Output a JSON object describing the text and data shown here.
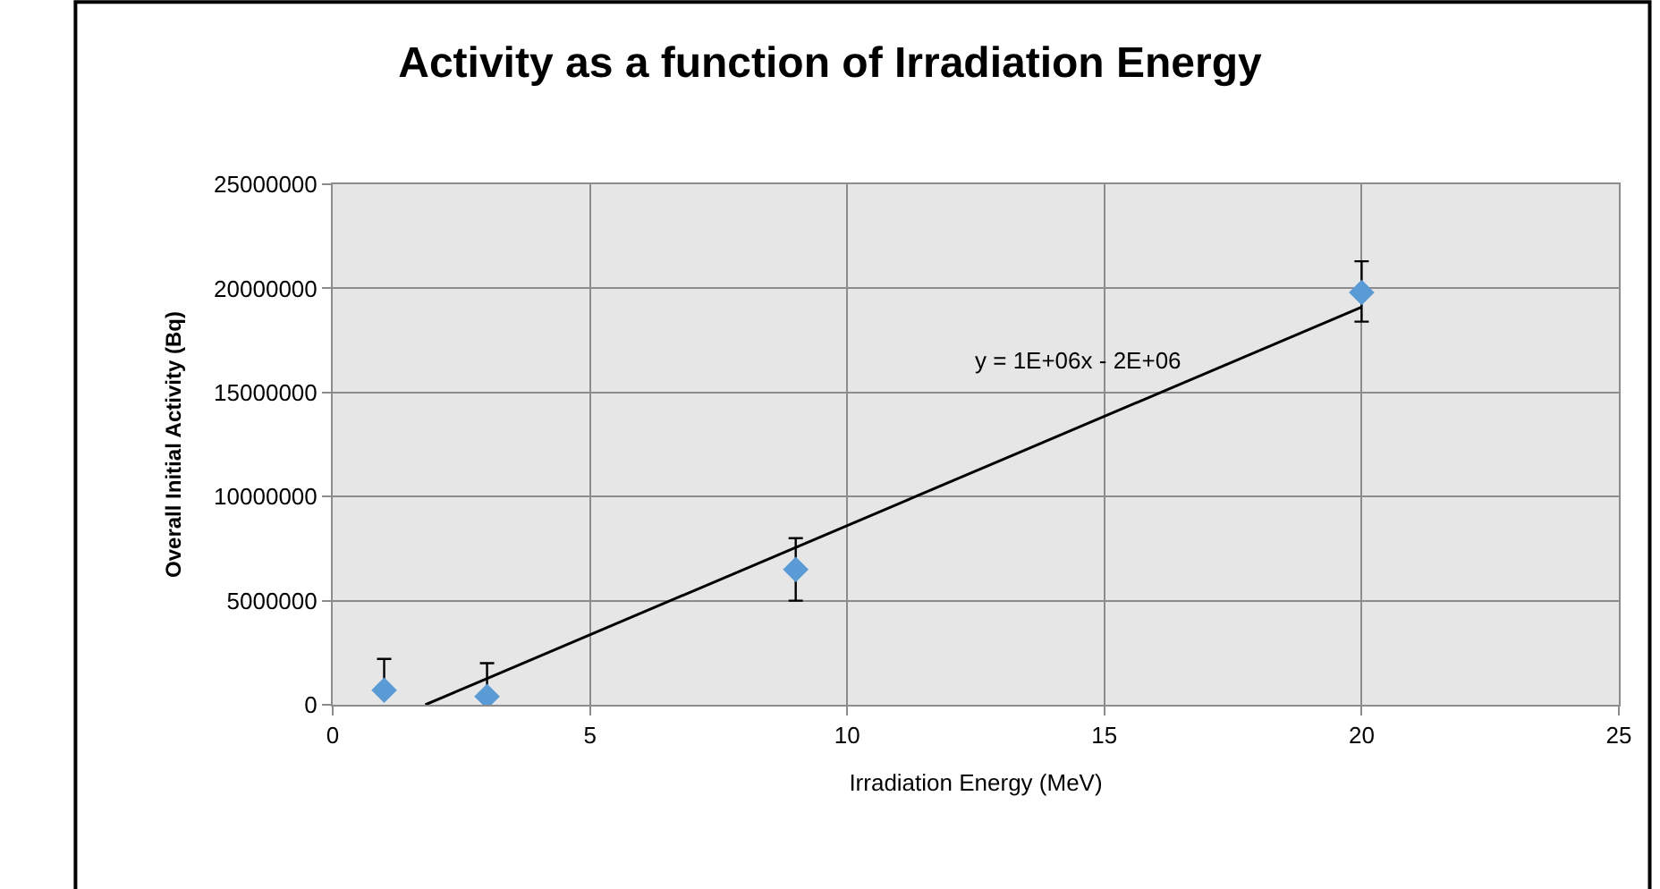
{
  "chart_data": {
    "type": "scatter",
    "title": "Activity as a function of Irradiation Energy",
    "xlabel": "Irradiation Energy (MeV)",
    "ylabel": "Overall Initial Activity (Bq)",
    "x": [
      1,
      3,
      9,
      20
    ],
    "series": [
      {
        "color": "#5b9bd5",
        "marker": "diamond",
        "values": [
          700000,
          400000,
          6500000,
          19800000
        ],
        "errors": [
          [
            700000,
            2200000
          ],
          [
            400000,
            2000000
          ],
          [
            5000000,
            8000000
          ],
          [
            18400000,
            21300000
          ]
        ]
      },
      {
        "type": "line",
        "color": "#000000",
        "x": [
          1.8,
          20
        ],
        "values": [
          0,
          19100000
        ]
      }
    ],
    "annotations": [
      "y = 1E+06x - 2E+06"
    ],
    "xlim": [
      0,
      25
    ],
    "xticks": [
      0,
      5,
      10,
      15,
      20,
      25
    ],
    "ylim": [
      0,
      25000000
    ],
    "yticks": [
      0,
      5000000,
      10000000,
      15000000,
      20000000,
      25000000
    ],
    "grid": true,
    "legend": false
  }
}
